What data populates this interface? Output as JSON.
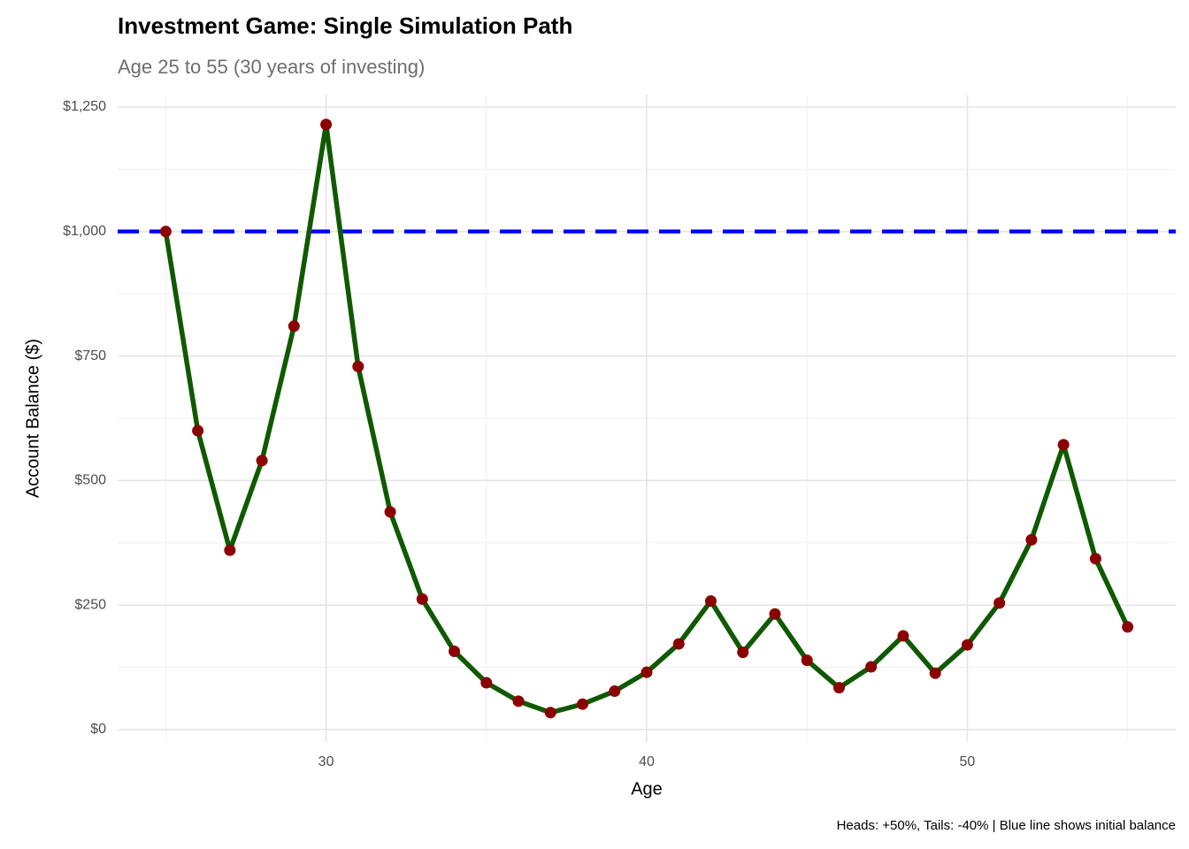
{
  "chart_data": {
    "type": "line",
    "title": "Investment Game: Single Simulation Path",
    "subtitle": "Age 25 to 55 (30 years of investing)",
    "x_label": "Age",
    "y_label": "Account Balance ($)",
    "caption": "Heads: +50%, Tails: -40% | Blue line shows initial balance",
    "x": [
      25,
      26,
      27,
      28,
      29,
      30,
      31,
      32,
      33,
      34,
      35,
      36,
      37,
      38,
      39,
      40,
      41,
      42,
      43,
      44,
      45,
      46,
      47,
      48,
      49,
      50,
      51,
      52,
      53,
      54,
      55
    ],
    "values": [
      1000,
      600,
      360,
      540,
      810,
      1215,
      729,
      437,
      262,
      157,
      94,
      57,
      34,
      51,
      77,
      115,
      172,
      258,
      155,
      232,
      139,
      84,
      126,
      188,
      113,
      170,
      254,
      381,
      572,
      343,
      206
    ],
    "line_color": "#0f5a00",
    "point_color": "#8b0000",
    "reference_line": {
      "value": 1000,
      "color": "#0000ff"
    },
    "xlim": [
      23.5,
      56.5
    ],
    "xticks": [
      30,
      40,
      50
    ],
    "x_minor_ticks": [
      25,
      35,
      45,
      55
    ],
    "ylim": [
      -25,
      1274
    ],
    "yticks": [
      {
        "value": 0,
        "label": "$0"
      },
      {
        "value": 250,
        "label": "$250"
      },
      {
        "value": 500,
        "label": "$500"
      },
      {
        "value": 750,
        "label": "$750"
      },
      {
        "value": 1000,
        "label": "$1,000"
      },
      {
        "value": 1250,
        "label": "$1,250"
      }
    ],
    "y_minor_ticks": [
      125,
      375,
      625,
      875,
      1125
    ],
    "grid": true
  }
}
